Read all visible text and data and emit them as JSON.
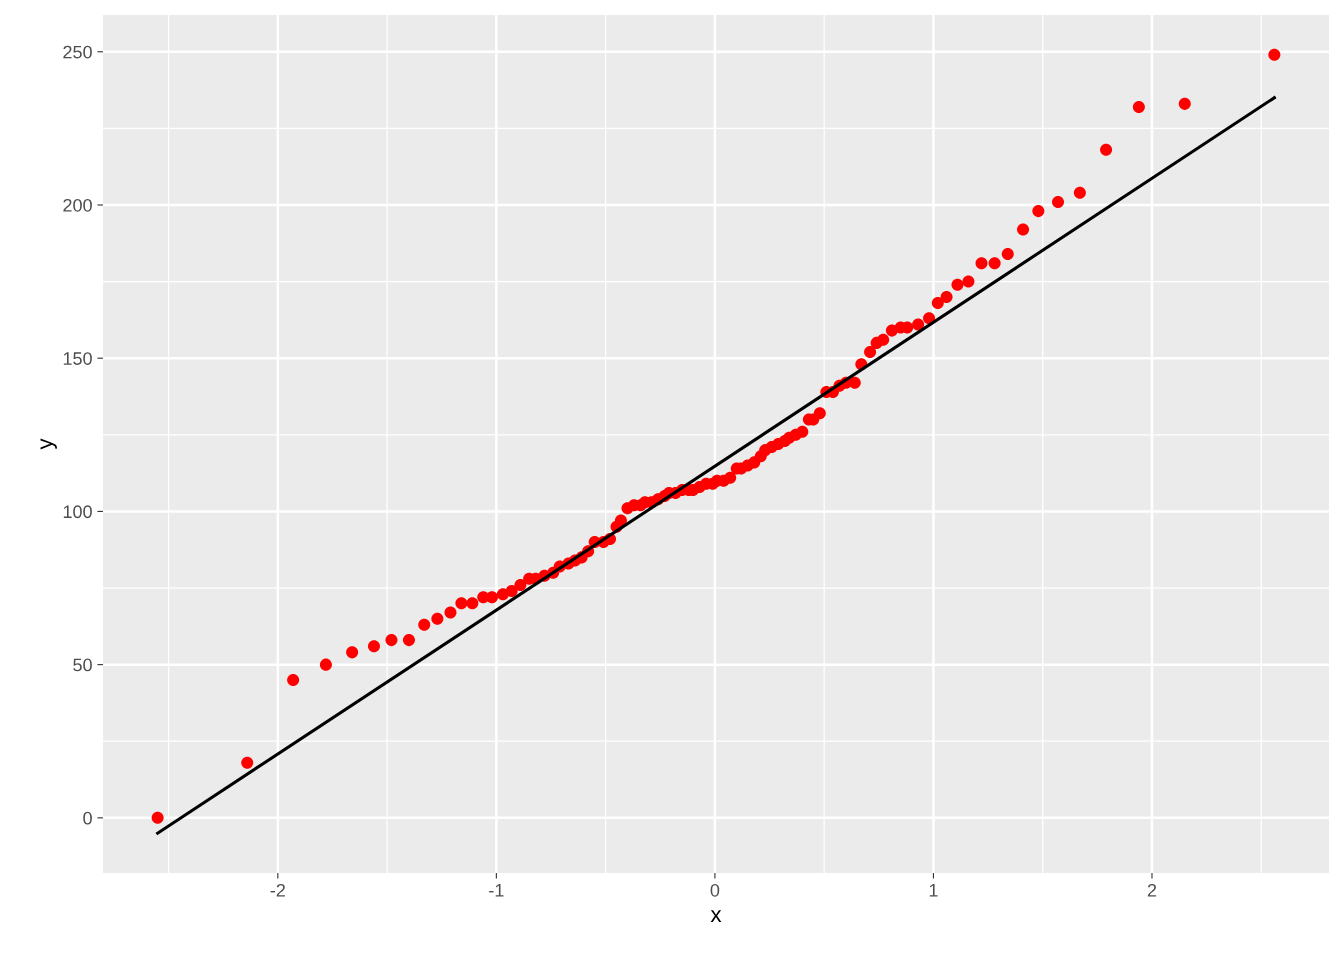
{
  "chart_data": {
    "type": "scatter",
    "xlabel": "x",
    "ylabel": "y",
    "xlim": [
      -2.8,
      2.81
    ],
    "ylim": [
      -18,
      262
    ],
    "xticks": [
      {
        "value": -2.5,
        "label": null
      },
      -2,
      {
        "value": -1.5,
        "label": null
      },
      -1,
      {
        "value": -0.5,
        "label": null
      },
      0,
      {
        "value": 0.5,
        "label": null
      },
      1,
      {
        "value": 1.5,
        "label": null
      },
      2,
      {
        "value": 2.5,
        "label": null
      }
    ],
    "yticks": [
      0,
      {
        "value": 25,
        "label": null
      },
      50,
      {
        "value": 75,
        "label": null
      },
      100,
      {
        "value": 125,
        "label": null
      },
      150,
      {
        "value": 175,
        "label": null
      },
      200,
      {
        "value": 225,
        "label": null
      },
      250
    ],
    "grid": true,
    "series": [
      {
        "marker": "circle",
        "color": "#ff0000",
        "x": [
          -2.55,
          -2.14,
          -1.93,
          -1.78,
          -1.66,
          -1.56,
          -1.48,
          -1.4,
          -1.33,
          -1.27,
          -1.21,
          -1.16,
          -1.11,
          -1.06,
          -1.02,
          -0.97,
          -0.93,
          -0.89,
          -0.85,
          -0.82,
          -0.78,
          -0.74,
          -0.71,
          -0.67,
          -0.64,
          -0.61,
          -0.58,
          -0.55,
          -0.51,
          -0.48,
          -0.45,
          -0.43,
          -0.4,
          -0.37,
          -0.34,
          -0.32,
          -0.29,
          -0.26,
          -0.23,
          -0.21,
          -0.18,
          -0.15,
          -0.12,
          -0.1,
          -0.07,
          -0.04,
          -0.01,
          0.01,
          0.04,
          0.07,
          0.1,
          0.12,
          0.15,
          0.18,
          0.21,
          0.23,
          0.26,
          0.29,
          0.32,
          0.34,
          0.37,
          0.4,
          0.43,
          0.45,
          0.48,
          0.51,
          0.54,
          0.57,
          0.6,
          0.64,
          0.67,
          0.71,
          0.74,
          0.77,
          0.81,
          0.85,
          0.88,
          0.93,
          0.98,
          1.02,
          1.06,
          1.11,
          1.16,
          1.22,
          1.28,
          1.34,
          1.41,
          1.48,
          1.57,
          1.67,
          1.79,
          1.94,
          2.15,
          2.56
        ],
        "values": [
          0,
          18,
          45,
          50,
          54,
          56,
          58,
          58,
          63,
          65,
          67,
          70,
          70,
          72,
          72,
          73,
          74,
          76,
          78,
          78,
          79,
          80,
          82,
          83,
          84,
          85,
          87,
          90,
          90,
          91,
          95,
          97,
          101,
          102,
          102,
          103,
          103,
          104,
          105,
          106,
          106,
          107,
          107,
          107,
          108,
          109,
          109,
          110,
          110,
          111,
          114,
          114,
          115,
          116,
          118,
          120,
          121,
          122,
          123,
          124,
          125,
          126,
          130,
          130,
          132,
          139,
          139,
          141,
          142,
          142,
          148,
          152,
          155,
          156,
          159,
          160,
          160,
          161,
          163,
          168,
          170,
          174,
          175,
          181,
          181,
          184,
          192,
          198,
          201,
          204,
          218,
          232,
          233,
          249
        ]
      },
      {
        "type": "line",
        "marker": "none",
        "color": "#000000",
        "x": [
          -2.55,
          2.56
        ],
        "values": [
          -5,
          235
        ]
      }
    ]
  }
}
